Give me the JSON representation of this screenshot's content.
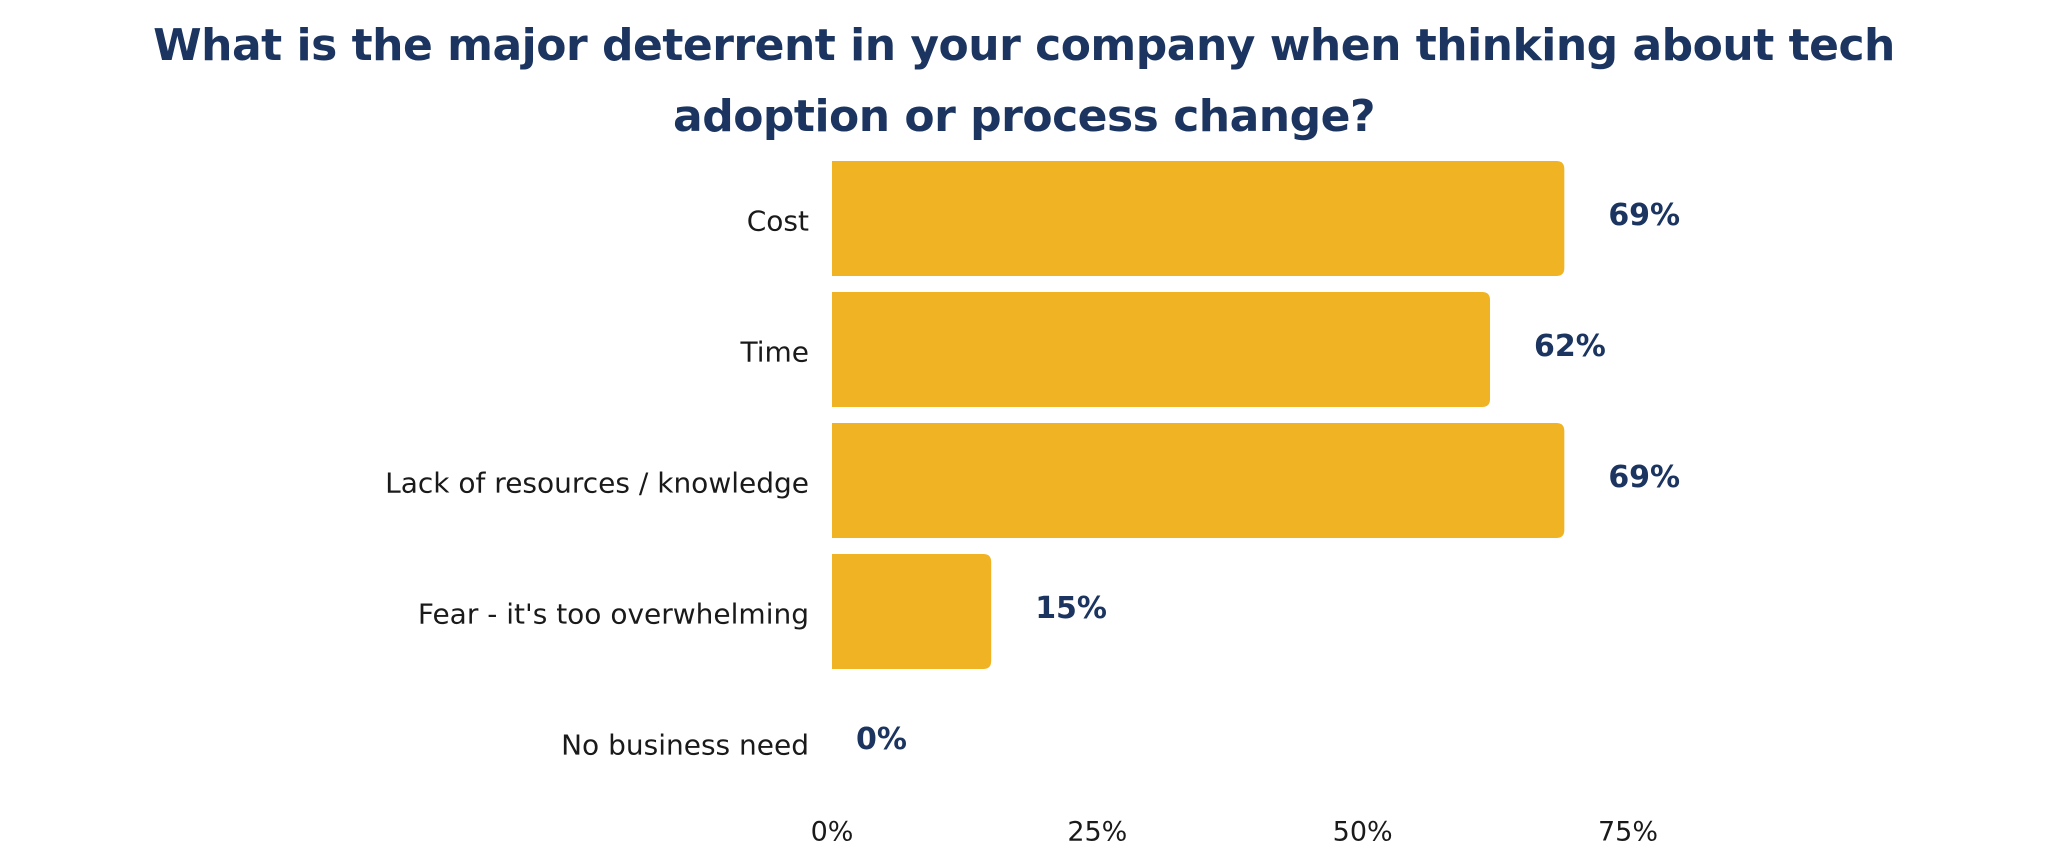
{
  "chart_data": {
    "type": "bar",
    "orientation": "horizontal",
    "title": "What is the major deterrent in your company when thinking about tech adoption or process change?",
    "categories": [
      "Cost",
      "Time",
      "Lack of resources / knowledge",
      "Fear - it's too overwhelming",
      "No business need"
    ],
    "values": [
      69,
      62,
      69,
      15,
      0
    ],
    "value_labels": [
      "69%",
      "62%",
      "69%",
      "15%",
      "0%"
    ],
    "xlim": [
      0,
      75
    ],
    "xticks": [
      0,
      25,
      50,
      75
    ],
    "xtick_labels": [
      "0%",
      "25%",
      "50%",
      "75%"
    ],
    "xlabel": "",
    "ylabel": "",
    "grid": false,
    "legend": "none",
    "colors": {
      "bar": "#f0b323",
      "title": "#1b3560",
      "value_label": "#1b3560",
      "category_label": "#1a1a1a"
    }
  }
}
